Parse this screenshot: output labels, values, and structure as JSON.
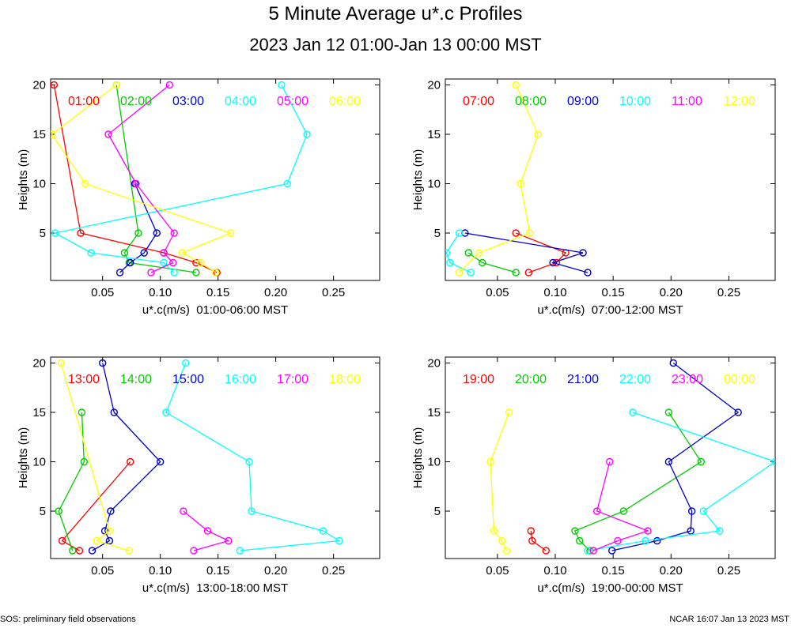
{
  "header": {
    "title": "5 Minute Average u*.c Profiles",
    "subtitle": "2023 Jan 12 01:00-Jan 13 00:00 MST"
  },
  "footer": {
    "left": "SOS: preliminary field observations",
    "right": "NCAR 16:07 Jan 13 2023 MST"
  },
  "colors": {
    "red": "#ff0000",
    "green": "#00cc00",
    "blue": "#0000cc",
    "cyan": "#00ffff",
    "magenta": "#ff00ff",
    "yellow": "#ffff00"
  },
  "chart_data": [
    {
      "type": "line",
      "ylabel": "Heights (m)",
      "xlabel": "u*.c(m/s)  01:00-06:00 MST",
      "xlim": [
        0.005,
        0.29
      ],
      "ylim": [
        0.2,
        20.6
      ],
      "xticks": [
        0.05,
        0.1,
        0.15,
        0.2,
        0.25
      ],
      "xtick_labels": [
        "0.05",
        "0.10",
        "0.15",
        "0.20",
        "0.25"
      ],
      "yticks": [
        5,
        10,
        15,
        20
      ],
      "ytick_labels": [
        "5",
        "10",
        "15",
        "20"
      ],
      "series": [
        {
          "name": "01:00",
          "color": "#ff0000",
          "x": [
            0.149,
            0.131,
            0.103,
            0.031,
            0.008
          ],
          "y": [
            1,
            2,
            3,
            5,
            20
          ]
        },
        {
          "name": "02:00",
          "color": "#00cc00",
          "x": [
            0.131,
            0.073,
            0.069,
            0.081,
            0.062
          ],
          "y": [
            1,
            2,
            3,
            5,
            20
          ]
        },
        {
          "name": "03:00",
          "color": "#0000cc",
          "x": [
            0.065,
            0.074,
            0.086,
            0.097,
            0.078
          ],
          "y": [
            1,
            2,
            3,
            5,
            10
          ]
        },
        {
          "name": "04:00",
          "color": "#00ffff",
          "x": [
            0.112,
            0.103,
            0.04,
            0.009,
            0.21,
            0.227,
            0.205
          ],
          "y": [
            1,
            2,
            3,
            5,
            10,
            15,
            20
          ]
        },
        {
          "name": "05:00",
          "color": "#ff00ff",
          "x": [
            0.092,
            0.111,
            0.103,
            0.112,
            0.079,
            0.055,
            0.108
          ],
          "y": [
            1,
            2,
            3,
            5,
            10,
            15,
            20
          ]
        },
        {
          "name": "06:00",
          "color": "#ffff00",
          "x": [
            0.148,
            0.135,
            0.119,
            0.161,
            0.035,
            0.006,
            0.062
          ],
          "y": [
            1,
            2,
            3,
            5,
            10,
            15,
            20
          ]
        }
      ]
    },
    {
      "type": "line",
      "ylabel": "Heights (m)",
      "xlabel": "u*.c(m/s)  07:00-12:00 MST",
      "xlim": [
        0.005,
        0.29
      ],
      "ylim": [
        0.2,
        20.6
      ],
      "xticks": [
        0.05,
        0.1,
        0.15,
        0.2,
        0.25
      ],
      "xtick_labels": [
        "0.05",
        "0.10",
        "0.15",
        "0.20",
        "0.25"
      ],
      "yticks": [
        5,
        10,
        15,
        20
      ],
      "ytick_labels": [
        "5",
        "10",
        "15",
        "20"
      ],
      "series": [
        {
          "name": "07:00",
          "color": "#ff0000",
          "x": [
            0.077,
            0.101,
            0.109,
            0.066
          ],
          "y": [
            1,
            2,
            3,
            5
          ]
        },
        {
          "name": "08:00",
          "color": "#00cc00",
          "x": [
            0.066,
            0.037,
            0.025
          ],
          "y": [
            1,
            2,
            3
          ]
        },
        {
          "name": "09:00",
          "color": "#0000cc",
          "x": [
            0.128,
            0.098,
            0.124,
            0.022
          ],
          "y": [
            1,
            2,
            3,
            5
          ]
        },
        {
          "name": "10:00",
          "color": "#00ffff",
          "x": [
            0.027,
            0.009,
            0.006,
            0.017
          ],
          "y": [
            1,
            2,
            3,
            5
          ]
        },
        {
          "name": "11:00",
          "color": "#ff00ff",
          "x": [],
          "y": []
        },
        {
          "name": "12:00",
          "color": "#ffff00",
          "x": [
            0.017,
            0.034,
            0.078,
            0.07,
            0.085,
            0.066
          ],
          "y": [
            1,
            3,
            5,
            10,
            15,
            20
          ]
        }
      ]
    },
    {
      "type": "line",
      "ylabel": "Heights (m)",
      "xlabel": "u*.c(m/s)  13:00-18:00 MST",
      "xlim": [
        0.005,
        0.29
      ],
      "ylim": [
        0.2,
        20.6
      ],
      "xticks": [
        0.05,
        0.1,
        0.15,
        0.2,
        0.25
      ],
      "xtick_labels": [
        "0.05",
        "0.10",
        "0.15",
        "0.20",
        "0.25"
      ],
      "yticks": [
        5,
        10,
        15,
        20
      ],
      "ytick_labels": [
        "5",
        "10",
        "15",
        "20"
      ],
      "series": [
        {
          "name": "13:00",
          "color": "#ff0000",
          "x": [
            0.03,
            0.015,
            0.074
          ],
          "y": [
            1,
            2,
            10
          ]
        },
        {
          "name": "14:00",
          "color": "#00cc00",
          "x": [
            0.024,
            0.012,
            0.034,
            0.032
          ],
          "y": [
            1,
            5,
            10,
            15
          ]
        },
        {
          "name": "15:00",
          "color": "#0000cc",
          "x": [
            0.041,
            0.056,
            0.052,
            0.057,
            0.1,
            0.06,
            0.05
          ],
          "y": [
            1,
            2,
            3,
            5,
            10,
            15,
            20
          ]
        },
        {
          "name": "16:00",
          "color": "#00ffff",
          "x": [
            0.169,
            0.255,
            0.241,
            0.179,
            0.177,
            0.105,
            0.122
          ],
          "y": [
            1,
            2,
            3,
            5,
            10,
            15,
            20
          ]
        },
        {
          "name": "17:00",
          "color": "#ff00ff",
          "x": [
            0.129,
            0.159,
            0.141,
            0.12
          ],
          "y": [
            1,
            2,
            3,
            5
          ]
        },
        {
          "name": "18:00",
          "color": "#ffff00",
          "x": [
            0.073,
            0.045,
            0.056,
            0.014
          ],
          "y": [
            1,
            2,
            3,
            20
          ]
        }
      ]
    },
    {
      "type": "line",
      "ylabel": "Heights (m)",
      "xlabel": "u*.c(m/s)  19:00-00:00 MST",
      "xlim": [
        0.005,
        0.29
      ],
      "ylim": [
        0.2,
        20.6
      ],
      "xticks": [
        0.05,
        0.1,
        0.15,
        0.2,
        0.25
      ],
      "xtick_labels": [
        "0.05",
        "0.10",
        "0.15",
        "0.20",
        "0.25"
      ],
      "yticks": [
        5,
        10,
        15,
        20
      ],
      "ytick_labels": [
        "5",
        "10",
        "15",
        "20"
      ],
      "series": [
        {
          "name": "19:00",
          "color": "#ff0000",
          "x": [
            0.092,
            0.08,
            0.079
          ],
          "y": [
            1,
            2,
            3
          ]
        },
        {
          "name": "20:00",
          "color": "#00cc00",
          "x": [
            0.13,
            0.121,
            0.117,
            0.159,
            0.226,
            0.198
          ],
          "y": [
            1,
            2,
            3,
            5,
            10,
            15
          ]
        },
        {
          "name": "21:00",
          "color": "#0000cc",
          "x": [
            0.149,
            0.188,
            0.217,
            0.218,
            0.198,
            0.258,
            0.202
          ],
          "y": [
            1,
            2,
            3,
            5,
            10,
            15,
            20
          ]
        },
        {
          "name": "22:00",
          "color": "#00ffff",
          "x": [
            0.128,
            0.178,
            0.242,
            0.228,
            0.29,
            0.167
          ],
          "y": [
            1,
            2,
            3,
            5,
            10,
            15
          ]
        },
        {
          "name": "23:00",
          "color": "#ff00ff",
          "x": [
            0.133,
            0.154,
            0.18,
            0.136,
            0.147
          ],
          "y": [
            1,
            2,
            3,
            5,
            10
          ]
        },
        {
          "name": "00:00",
          "color": "#ffff00",
          "x": [
            0.058,
            0.054,
            0.047,
            0.044,
            0.06
          ],
          "y": [
            1,
            2,
            3,
            10,
            15
          ]
        }
      ]
    }
  ]
}
